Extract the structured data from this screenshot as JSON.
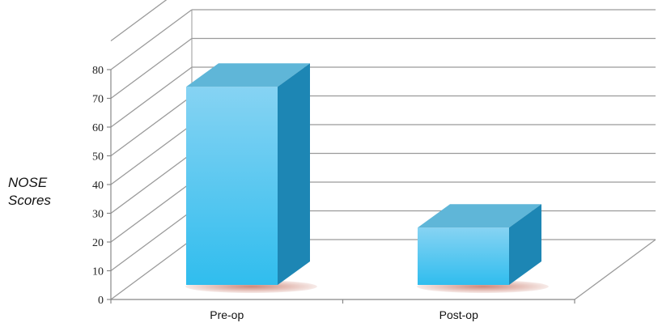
{
  "chart_data": {
    "type": "bar",
    "categories": [
      "Pre-op",
      "Post-op"
    ],
    "values": [
      74,
      25
    ],
    "ylabel_lines": [
      "NOSE",
      "Scores"
    ],
    "ylim": [
      0,
      80
    ],
    "yticks": [
      "0",
      "10",
      "20",
      "30",
      "40",
      "50",
      "60",
      "70",
      "80"
    ],
    "grid": true,
    "colors": {
      "bar_front_top": "#86d3f3",
      "bar_front_bottom": "#30bdee",
      "bar_top": "#5fb6d8",
      "bar_side": "#1d86b4",
      "shadow": "#c97a6a",
      "grid": "#9a9a9a",
      "axis": "#888888"
    }
  }
}
